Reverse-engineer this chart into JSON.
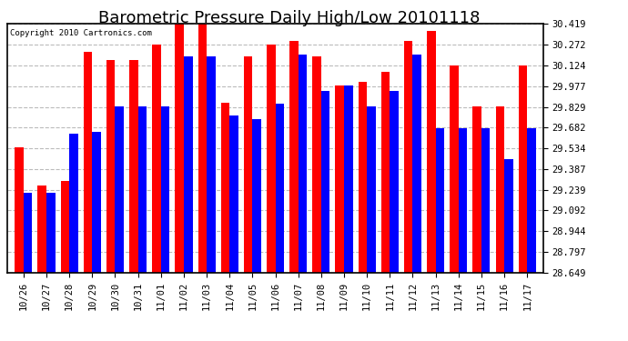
{
  "title": "Barometric Pressure Daily High/Low 20101118",
  "copyright": "Copyright 2010 Cartronics.com",
  "yticks": [
    28.649,
    28.797,
    28.944,
    29.092,
    29.239,
    29.387,
    29.534,
    29.682,
    29.829,
    29.977,
    30.124,
    30.272,
    30.419
  ],
  "ylim": [
    28.649,
    30.419
  ],
  "categories": [
    "10/26",
    "10/27",
    "10/28",
    "10/29",
    "10/30",
    "10/31",
    "11/01",
    "11/02",
    "11/03",
    "11/04",
    "11/05",
    "11/06",
    "11/07",
    "11/08",
    "11/09",
    "11/10",
    "11/11",
    "11/12",
    "11/13",
    "11/14",
    "11/15",
    "11/16",
    "11/17"
  ],
  "highs": [
    29.54,
    29.27,
    29.3,
    30.22,
    30.16,
    30.16,
    30.27,
    30.42,
    30.42,
    29.86,
    30.19,
    30.27,
    30.3,
    30.19,
    29.98,
    30.01,
    30.08,
    30.3,
    30.37,
    30.12,
    29.83,
    29.83,
    30.12
  ],
  "lows": [
    29.22,
    29.22,
    29.64,
    29.65,
    29.83,
    29.83,
    29.83,
    30.19,
    30.19,
    29.77,
    29.74,
    29.85,
    30.2,
    29.94,
    29.98,
    29.83,
    29.94,
    30.2,
    29.68,
    29.68,
    29.68,
    29.46,
    29.68
  ],
  "high_color": "#ff0000",
  "low_color": "#0000ff",
  "bg_color": "#ffffff",
  "grid_color": "#aaaaaa",
  "title_fontsize": 13,
  "bar_width": 0.38
}
